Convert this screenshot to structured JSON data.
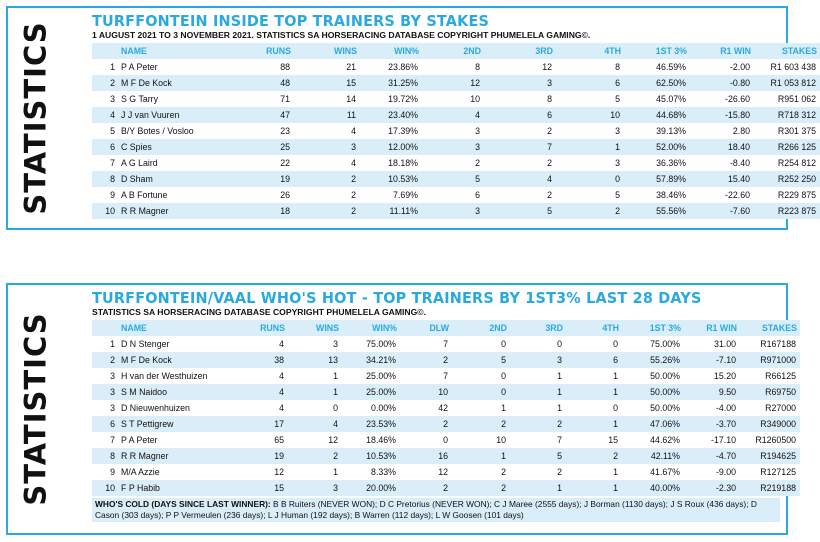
{
  "panel1": {
    "side_label": "STATISTICS",
    "title": "TURFFONTEIN INSIDE TOP TRAINERS BY STAKES",
    "subtitle": "1 AUGUST 2021 TO 3 NOVEMBER 2021. STATISTICS SA HORSERACING DATABASE COPYRIGHT PHUMELELA GAMING©.",
    "headers": [
      "",
      "NAME",
      "RUNS",
      "WINS",
      "WIN%",
      "2ND",
      "3RD",
      "4TH",
      "1ST 3%",
      "R1 WIN",
      "STAKES"
    ],
    "rows": [
      [
        "1",
        "P A Peter",
        "88",
        "21",
        "23.86%",
        "8",
        "12",
        "8",
        "46.59%",
        "-2.00",
        "R1 603 438"
      ],
      [
        "2",
        "M F De Kock",
        "48",
        "15",
        "31.25%",
        "12",
        "3",
        "6",
        "62.50%",
        "-0.80",
        "R1 053 812"
      ],
      [
        "3",
        "S G Tarry",
        "71",
        "14",
        "19.72%",
        "10",
        "8",
        "5",
        "45.07%",
        "-26.60",
        "R951 062"
      ],
      [
        "4",
        "J J van Vuuren",
        "47",
        "11",
        "23.40%",
        "4",
        "6",
        "10",
        "44.68%",
        "-15.80",
        "R718 312"
      ],
      [
        "5",
        "B/Y Botes / Vosloo",
        "23",
        "4",
        "17.39%",
        "3",
        "2",
        "3",
        "39.13%",
        "2.80",
        "R301 375"
      ],
      [
        "6",
        "C Spies",
        "25",
        "3",
        "12.00%",
        "3",
        "7",
        "1",
        "52.00%",
        "18.40",
        "R266 125"
      ],
      [
        "7",
        "A G Laird",
        "22",
        "4",
        "18.18%",
        "2",
        "2",
        "3",
        "36.36%",
        "-8.40",
        "R254 812"
      ],
      [
        "8",
        "D Sham",
        "19",
        "2",
        "10.53%",
        "5",
        "4",
        "0",
        "57.89%",
        "15.40",
        "R252 250"
      ],
      [
        "9",
        "A B Fortune",
        "26",
        "2",
        "7.69%",
        "6",
        "2",
        "5",
        "38.46%",
        "-22.60",
        "R229 875"
      ],
      [
        "10",
        "R R Magner",
        "18",
        "2",
        "11.11%",
        "3",
        "5",
        "2",
        "55.56%",
        "-7.60",
        "R223 875"
      ]
    ]
  },
  "panel2": {
    "side_label": "STATISTICS",
    "title": "TURFFONTEIN/VAAL WHO'S HOT - TOP TRAINERS BY 1ST3% LAST 28 DAYS",
    "subtitle": "STATISTICS SA HORSERACING DATABASE COPYRIGHT PHUMELELA GAMING©.",
    "headers": [
      "",
      "NAME",
      "RUNS",
      "WINS",
      "WIN%",
      "DLW",
      "2ND",
      "3RD",
      "4TH",
      "1ST 3%",
      "R1 WIN",
      "STAKES"
    ],
    "rows": [
      [
        "1",
        "D N Stenger",
        "4",
        "3",
        "75.00%",
        "7",
        "0",
        "0",
        "0",
        "75.00%",
        "31.00",
        "R167188"
      ],
      [
        "2",
        "M F De Kock",
        "38",
        "13",
        "34.21%",
        "2",
        "5",
        "3",
        "6",
        "55.26%",
        "-7.10",
        "R971000"
      ],
      [
        "3",
        "H van der Westhuizen",
        "4",
        "1",
        "25.00%",
        "7",
        "0",
        "1",
        "1",
        "50.00%",
        "15.20",
        "R66125"
      ],
      [
        "3",
        "S M Naidoo",
        "4",
        "1",
        "25.00%",
        "10",
        "0",
        "1",
        "1",
        "50.00%",
        "9.50",
        "R69750"
      ],
      [
        "3",
        "D Nieuwenhuizen",
        "4",
        "0",
        "0.00%",
        "42",
        "1",
        "1",
        "0",
        "50.00%",
        "-4.00",
        "R27000"
      ],
      [
        "6",
        "S T Pettigrew",
        "17",
        "4",
        "23.53%",
        "2",
        "2",
        "2",
        "1",
        "47.06%",
        "-3.70",
        "R349000"
      ],
      [
        "7",
        "P A Peter",
        "65",
        "12",
        "18.46%",
        "0",
        "10",
        "7",
        "15",
        "44.62%",
        "-17.10",
        "R1260500"
      ],
      [
        "8",
        "R R Magner",
        "19",
        "2",
        "10.53%",
        "16",
        "1",
        "5",
        "2",
        "42.11%",
        "-4.70",
        "R194625"
      ],
      [
        "9",
        "M/A Azzie",
        "12",
        "1",
        "8.33%",
        "12",
        "2",
        "2",
        "1",
        "41.67%",
        "-9.00",
        "R127125"
      ],
      [
        "10",
        "F P Habib",
        "15",
        "3",
        "20.00%",
        "2",
        "2",
        "1",
        "1",
        "40.00%",
        "-2.30",
        "R219188"
      ]
    ],
    "cold_label": "WHO'S COLD (DAYS SINCE LAST WINNER):",
    "cold_text": " B B Ruiters (NEVER WON); D C Pretorius (NEVER WON); C J Maree (2555 days); J Borman (1130 days); J S Roux (436 days); D Cason (303 days); P P Vermeulen (236 days); L J Human (192 days); B Warren (112 days); L W Goosen (101 days)"
  }
}
